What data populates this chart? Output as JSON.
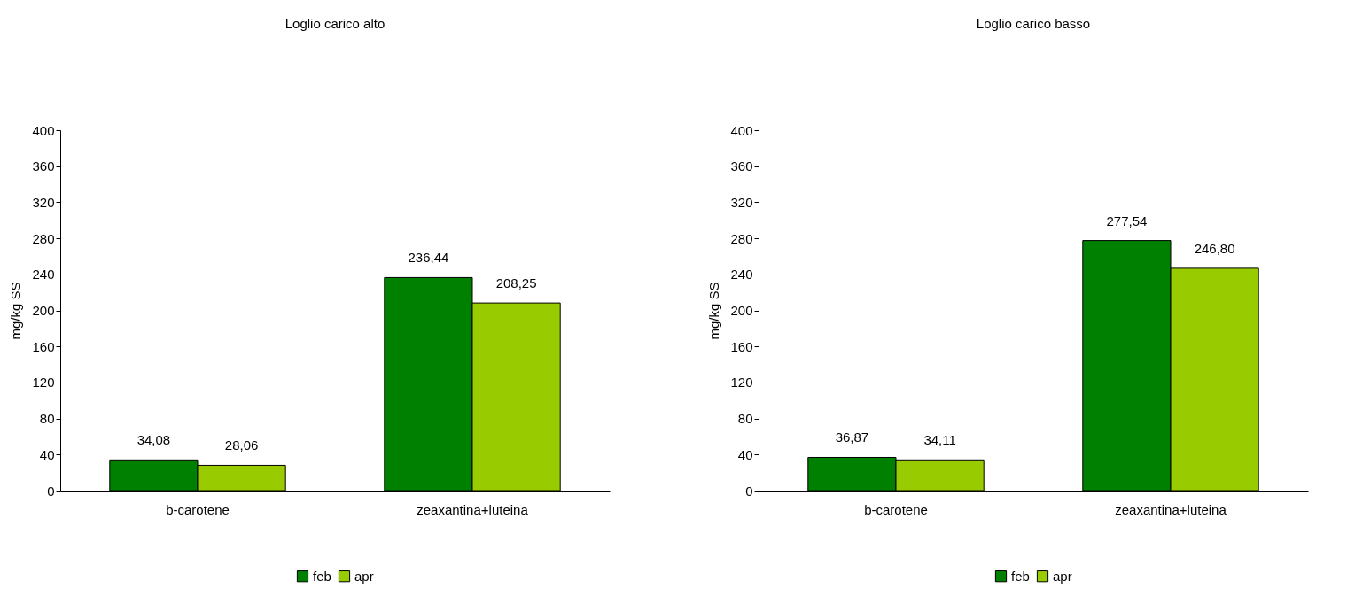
{
  "chart_data": [
    {
      "type": "bar",
      "title": "Loglio carico alto",
      "ylabel": "mg/kg SS",
      "categories": [
        "b-carotene",
        "zeaxantina+luteina"
      ],
      "ylim": [
        0,
        400
      ],
      "yticks": [
        0,
        40,
        80,
        120,
        160,
        200,
        240,
        280,
        320,
        360,
        400
      ],
      "grid": false,
      "legend": "bottom",
      "series": [
        {
          "name": "feb",
          "color": "#008000",
          "values": [
            34.08,
            236.44
          ],
          "value_labels": [
            "34,08",
            "236,44"
          ]
        },
        {
          "name": "apr",
          "color": "#99cc00",
          "values": [
            28.06,
            208.25
          ],
          "value_labels": [
            "28,06",
            "208,25"
          ]
        }
      ]
    },
    {
      "type": "bar",
      "title": "Loglio  carico basso",
      "ylabel": "mg/kg SS",
      "categories": [
        "b-carotene",
        "zeaxantina+luteina"
      ],
      "ylim": [
        0,
        400
      ],
      "yticks": [
        0,
        40,
        80,
        120,
        160,
        200,
        240,
        280,
        320,
        360,
        400
      ],
      "grid": false,
      "legend": "bottom",
      "series": [
        {
          "name": "feb",
          "color": "#008000",
          "values": [
            36.87,
            277.54
          ],
          "value_labels": [
            "36,87",
            "277,54"
          ]
        },
        {
          "name": "apr",
          "color": "#99cc00",
          "values": [
            34.11,
            246.8
          ],
          "value_labels": [
            "34,11",
            "246,80"
          ]
        }
      ]
    }
  ]
}
